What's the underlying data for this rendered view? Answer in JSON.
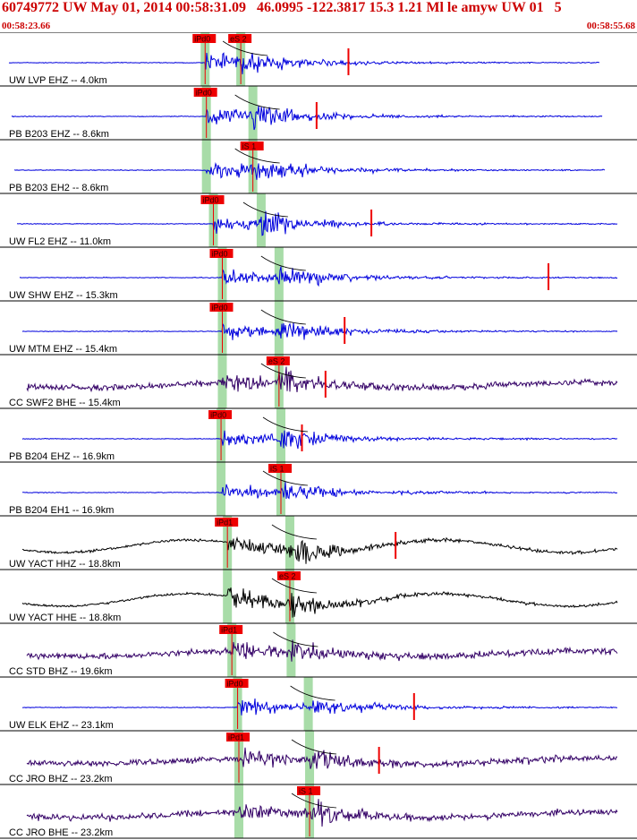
{
  "header": {
    "title": "60749772 UW May 01, 2014 00:58:31.09   46.0995 -122.3817 15.3 1.21 Ml le amyw UW 01   5",
    "time_start": "00:58:23.66",
    "time_end": "00:58:55.68"
  },
  "colors": {
    "header_text": "#cc0000",
    "velocity_trace": "#0000dd",
    "broadband_trace": "#330066",
    "strong_motion_trace": "#000000",
    "pick": "#ee0000",
    "pick_band": "#a8dca8",
    "travel_curve": "#000000"
  },
  "chart_data": {
    "type": "line",
    "title": "60749772 UW May 01, 2014 00:58:31.09   46.0995 -122.3817 15.3 1.21 Ml le amyw UW 01   5",
    "x_unit": "time",
    "xlim": [
      "00:58:23.66",
      "00:58:55.68"
    ],
    "grid": false,
    "traces": [
      {
        "label": "UW LVP EHZ -- 4.0km",
        "color": "velocity_trace",
        "p_onset": 0.322,
        "s_onset": 0.378,
        "pick_labels": [
          "iPd0",
          "eS 2"
        ],
        "markers": [
          0.547
        ]
      },
      {
        "label": "PB B203 EHZ -- 8.6km",
        "color": "velocity_trace",
        "p_onset": 0.324,
        "s_onset": 0.397,
        "pick_labels": [
          "iPd0"
        ],
        "markers": [
          0.497
        ]
      },
      {
        "label": "PB B203 EH2 -- 8.6km",
        "color": "velocity_trace",
        "p_onset": 0.324,
        "s_onset": 0.397,
        "pick_labels": [
          "iS 1"
        ],
        "markers": []
      },
      {
        "label": "UW FL2 EHZ -- 11.0km",
        "color": "velocity_trace",
        "p_onset": 0.335,
        "s_onset": 0.41,
        "pick_labels": [
          "iPd0"
        ],
        "markers": [
          0.583
        ]
      },
      {
        "label": "UW SHW EHZ -- 15.3km",
        "color": "velocity_trace",
        "p_onset": 0.349,
        "s_onset": 0.438,
        "pick_labels": [
          "iPd0"
        ],
        "markers": [
          0.861
        ]
      },
      {
        "label": "UW MTM EHZ -- 15.4km",
        "color": "velocity_trace",
        "p_onset": 0.349,
        "s_onset": 0.438,
        "pick_labels": [
          "iPd0"
        ],
        "markers": [
          0.541
        ]
      },
      {
        "label": "CC SWF2 BHE -- 15.4km",
        "color": "broadband_trace",
        "p_onset": 0.349,
        "s_onset": 0.438,
        "pick_labels": [
          "eS 2"
        ],
        "markers": [
          0.511
        ]
      },
      {
        "label": "PB B204 EHZ -- 16.9km",
        "color": "velocity_trace",
        "p_onset": 0.347,
        "s_onset": 0.441,
        "pick_labels": [
          "iPd0"
        ],
        "markers": [
          0.474
        ]
      },
      {
        "label": "PB B204 EH1 -- 16.9km",
        "color": "velocity_trace",
        "p_onset": 0.347,
        "s_onset": 0.441,
        "pick_labels": [
          "iS 1"
        ],
        "markers": []
      },
      {
        "label": "UW YACT HHZ -- 18.8km",
        "color": "strong_motion_trace",
        "p_onset": 0.357,
        "s_onset": 0.455,
        "pick_labels": [
          "iPd1"
        ],
        "markers": [
          0.621
        ]
      },
      {
        "label": "UW YACT HHE -- 18.8km",
        "color": "strong_motion_trace",
        "p_onset": 0.357,
        "s_onset": 0.455,
        "pick_labels": [
          "eS 2"
        ],
        "markers": []
      },
      {
        "label": "CC STD BHZ -- 19.6km",
        "color": "broadband_trace",
        "p_onset": 0.364,
        "s_onset": 0.457,
        "pick_labels": [
          "iPd1"
        ],
        "markers": []
      },
      {
        "label": "UW ELK EHZ -- 23.1km",
        "color": "velocity_trace",
        "p_onset": 0.373,
        "s_onset": 0.484,
        "pick_labels": [
          "iPd0"
        ],
        "markers": [
          0.65
        ]
      },
      {
        "label": "CC JRO BHZ -- 23.2km",
        "color": "broadband_trace",
        "p_onset": 0.375,
        "s_onset": 0.486,
        "pick_labels": [
          "iPd1"
        ],
        "markers": [
          0.595
        ]
      },
      {
        "label": "CC JRO BHE -- 23.2km",
        "color": "broadband_trace",
        "p_onset": 0.375,
        "s_onset": 0.486,
        "pick_labels": [
          "iS 1"
        ],
        "markers": []
      }
    ]
  }
}
